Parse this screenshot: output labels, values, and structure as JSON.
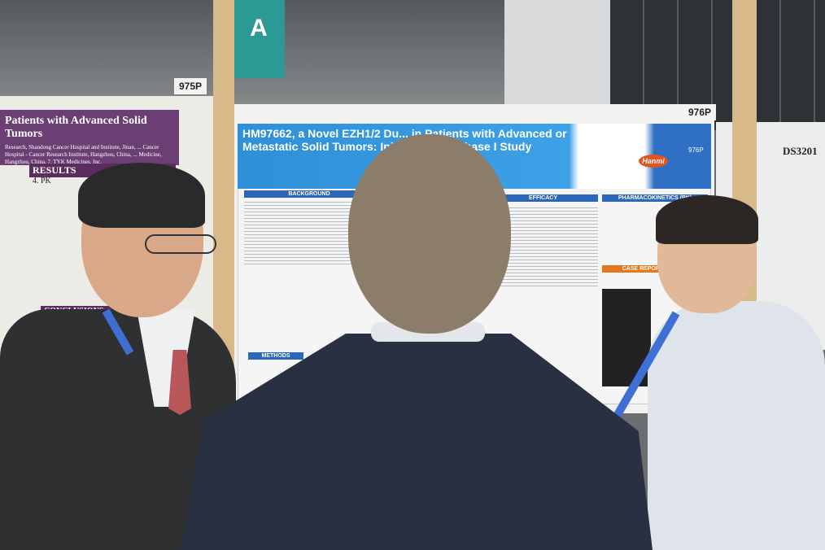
{
  "scene": {
    "hall_sign": "A",
    "board_labels": [
      "975P",
      "976P"
    ],
    "right_board_label": "DS3201"
  },
  "left_poster": {
    "title": "Patients with Advanced Solid Tumors",
    "affiliations": "Research, Shandong Cancer Hospital and Institute, Jinan, ... Cancer Hospital - Cancer Research Institute, Hangzhou, China, ... Medicine, Hangzhou, China, 7. TYK Medicines, Inc.",
    "sections": {
      "results": "RESULTS",
      "pk": "4. PK",
      "conclusions": "CONCLUSIONS"
    }
  },
  "center_poster": {
    "title": "HM97662, a Novel EZH1/2 Du... in Patients with Advanced or Metastatic Solid Tumors: Initial Resul... Phase I Study",
    "poster_code": "976P",
    "logo_text": "Hanmi",
    "sections": {
      "background": "BACKGROUND",
      "efficacy": "EFFICACY",
      "pharmacokinetics": "PHARMACOKINETICS (PK)",
      "case_report": "CASE REPORT",
      "methods": "METHODS"
    }
  },
  "colors": {
    "left_poster": "#6b3f74",
    "center_poster": "#2f8fd8",
    "hall_sign": "#2c9a94",
    "lanyard": "#3f6fd4"
  }
}
